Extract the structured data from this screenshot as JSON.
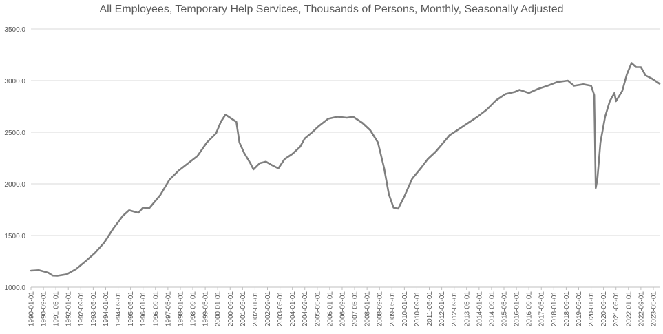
{
  "chart_data": {
    "type": "line",
    "title": "All Employees, Temporary Help Services, Thousands of Persons, Monthly, Seasonally Adjusted",
    "xlabel": "",
    "ylabel": "",
    "ylim": [
      1000,
      3500
    ],
    "yticks": [
      "1000.0",
      "1500.0",
      "2000.0",
      "2500.0",
      "3000.0",
      "3500.0"
    ],
    "grid": "horizontal",
    "line_color": "#7f7f7f",
    "xticks": [
      "1990-01-01",
      "1990-09-01",
      "1991-05-01",
      "1992-01-01",
      "1992-09-01",
      "1993-05-01",
      "1994-01-01",
      "1994-09-01",
      "1995-05-01",
      "1996-01-01",
      "1996-09-01",
      "1997-05-01",
      "1998-01-01",
      "1998-09-01",
      "1999-05-01",
      "2000-01-01",
      "2000-09-01",
      "2001-05-01",
      "2002-01-01",
      "2002-09-01",
      "2003-05-01",
      "2004-01-01",
      "2004-09-01",
      "2005-05-01",
      "2006-01-01",
      "2006-09-01",
      "2007-05-01",
      "2008-01-01",
      "2008-09-01",
      "2009-05-01",
      "2010-01-01",
      "2010-09-01",
      "2011-05-01",
      "2012-01-01",
      "2012-09-01",
      "2013-05-01",
      "2014-01-01",
      "2014-09-01",
      "2015-05-01",
      "2016-01-01",
      "2016-09-01",
      "2017-05-01",
      "2018-01-01",
      "2018-09-01",
      "2019-05-01",
      "2020-01-01",
      "2020-09-01",
      "2021-05-01",
      "2022-01-01",
      "2022-09-01",
      "2023-05-01"
    ],
    "series": [
      {
        "values": [
          [
            "1990-01-01",
            1160
          ],
          [
            "1990-06-01",
            1165
          ],
          [
            "1990-12-01",
            1140
          ],
          [
            "1991-03-01",
            1112
          ],
          [
            "1991-06-01",
            1110
          ],
          [
            "1991-12-01",
            1125
          ],
          [
            "1992-06-01",
            1175
          ],
          [
            "1992-12-01",
            1250
          ],
          [
            "1993-06-01",
            1330
          ],
          [
            "1993-12-01",
            1430
          ],
          [
            "1994-06-01",
            1570
          ],
          [
            "1994-12-01",
            1690
          ],
          [
            "1995-04-01",
            1745
          ],
          [
            "1995-10-01",
            1720
          ],
          [
            "1996-01-01",
            1770
          ],
          [
            "1996-05-01",
            1765
          ],
          [
            "1996-12-01",
            1890
          ],
          [
            "1997-06-01",
            2040
          ],
          [
            "1997-12-01",
            2130
          ],
          [
            "1998-06-01",
            2200
          ],
          [
            "1998-12-01",
            2270
          ],
          [
            "1999-06-01",
            2400
          ],
          [
            "1999-12-01",
            2490
          ],
          [
            "2000-03-01",
            2600
          ],
          [
            "2000-06-01",
            2670
          ],
          [
            "2000-09-01",
            2640
          ],
          [
            "2001-01-01",
            2600
          ],
          [
            "2001-03-01",
            2400
          ],
          [
            "2001-06-01",
            2300
          ],
          [
            "2001-10-01",
            2200
          ],
          [
            "2001-12-01",
            2140
          ],
          [
            "2002-04-01",
            2200
          ],
          [
            "2002-08-01",
            2215
          ],
          [
            "2002-12-01",
            2180
          ],
          [
            "2003-04-01",
            2150
          ],
          [
            "2003-08-01",
            2240
          ],
          [
            "2004-01-01",
            2290
          ],
          [
            "2004-06-01",
            2360
          ],
          [
            "2004-09-01",
            2440
          ],
          [
            "2005-01-01",
            2490
          ],
          [
            "2005-06-01",
            2560
          ],
          [
            "2005-12-01",
            2630
          ],
          [
            "2006-06-01",
            2650
          ],
          [
            "2006-12-01",
            2640
          ],
          [
            "2007-04-01",
            2650
          ],
          [
            "2007-10-01",
            2590
          ],
          [
            "2008-03-01",
            2520
          ],
          [
            "2008-08-01",
            2400
          ],
          [
            "2008-12-01",
            2150
          ],
          [
            "2009-03-01",
            1900
          ],
          [
            "2009-06-01",
            1770
          ],
          [
            "2009-09-01",
            1760
          ],
          [
            "2010-01-01",
            1880
          ],
          [
            "2010-06-01",
            2050
          ],
          [
            "2010-12-01",
            2160
          ],
          [
            "2011-04-01",
            2240
          ],
          [
            "2011-09-01",
            2310
          ],
          [
            "2012-01-01",
            2380
          ],
          [
            "2012-06-01",
            2470
          ],
          [
            "2012-12-01",
            2530
          ],
          [
            "2013-06-01",
            2590
          ],
          [
            "2013-12-01",
            2650
          ],
          [
            "2014-06-01",
            2720
          ],
          [
            "2014-12-01",
            2810
          ],
          [
            "2015-06-01",
            2870
          ],
          [
            "2015-12-01",
            2890
          ],
          [
            "2016-03-01",
            2910
          ],
          [
            "2016-09-01",
            2880
          ],
          [
            "2017-03-01",
            2920
          ],
          [
            "2017-09-01",
            2950
          ],
          [
            "2018-03-01",
            2985
          ],
          [
            "2018-10-01",
            3000
          ],
          [
            "2019-02-01",
            2950
          ],
          [
            "2019-08-01",
            2965
          ],
          [
            "2020-01-01",
            2950
          ],
          [
            "2020-03-01",
            2860
          ],
          [
            "2020-04-01",
            1960
          ],
          [
            "2020-05-01",
            2040
          ],
          [
            "2020-07-01",
            2400
          ],
          [
            "2020-10-01",
            2650
          ],
          [
            "2021-01-01",
            2800
          ],
          [
            "2021-04-01",
            2880
          ],
          [
            "2021-05-01",
            2800
          ],
          [
            "2021-09-01",
            2900
          ],
          [
            "2021-12-01",
            3060
          ],
          [
            "2022-03-01",
            3170
          ],
          [
            "2022-06-01",
            3130
          ],
          [
            "2022-09-01",
            3130
          ],
          [
            "2022-12-01",
            3050
          ],
          [
            "2023-04-01",
            3020
          ],
          [
            "2023-09-01",
            2970
          ]
        ]
      }
    ]
  }
}
